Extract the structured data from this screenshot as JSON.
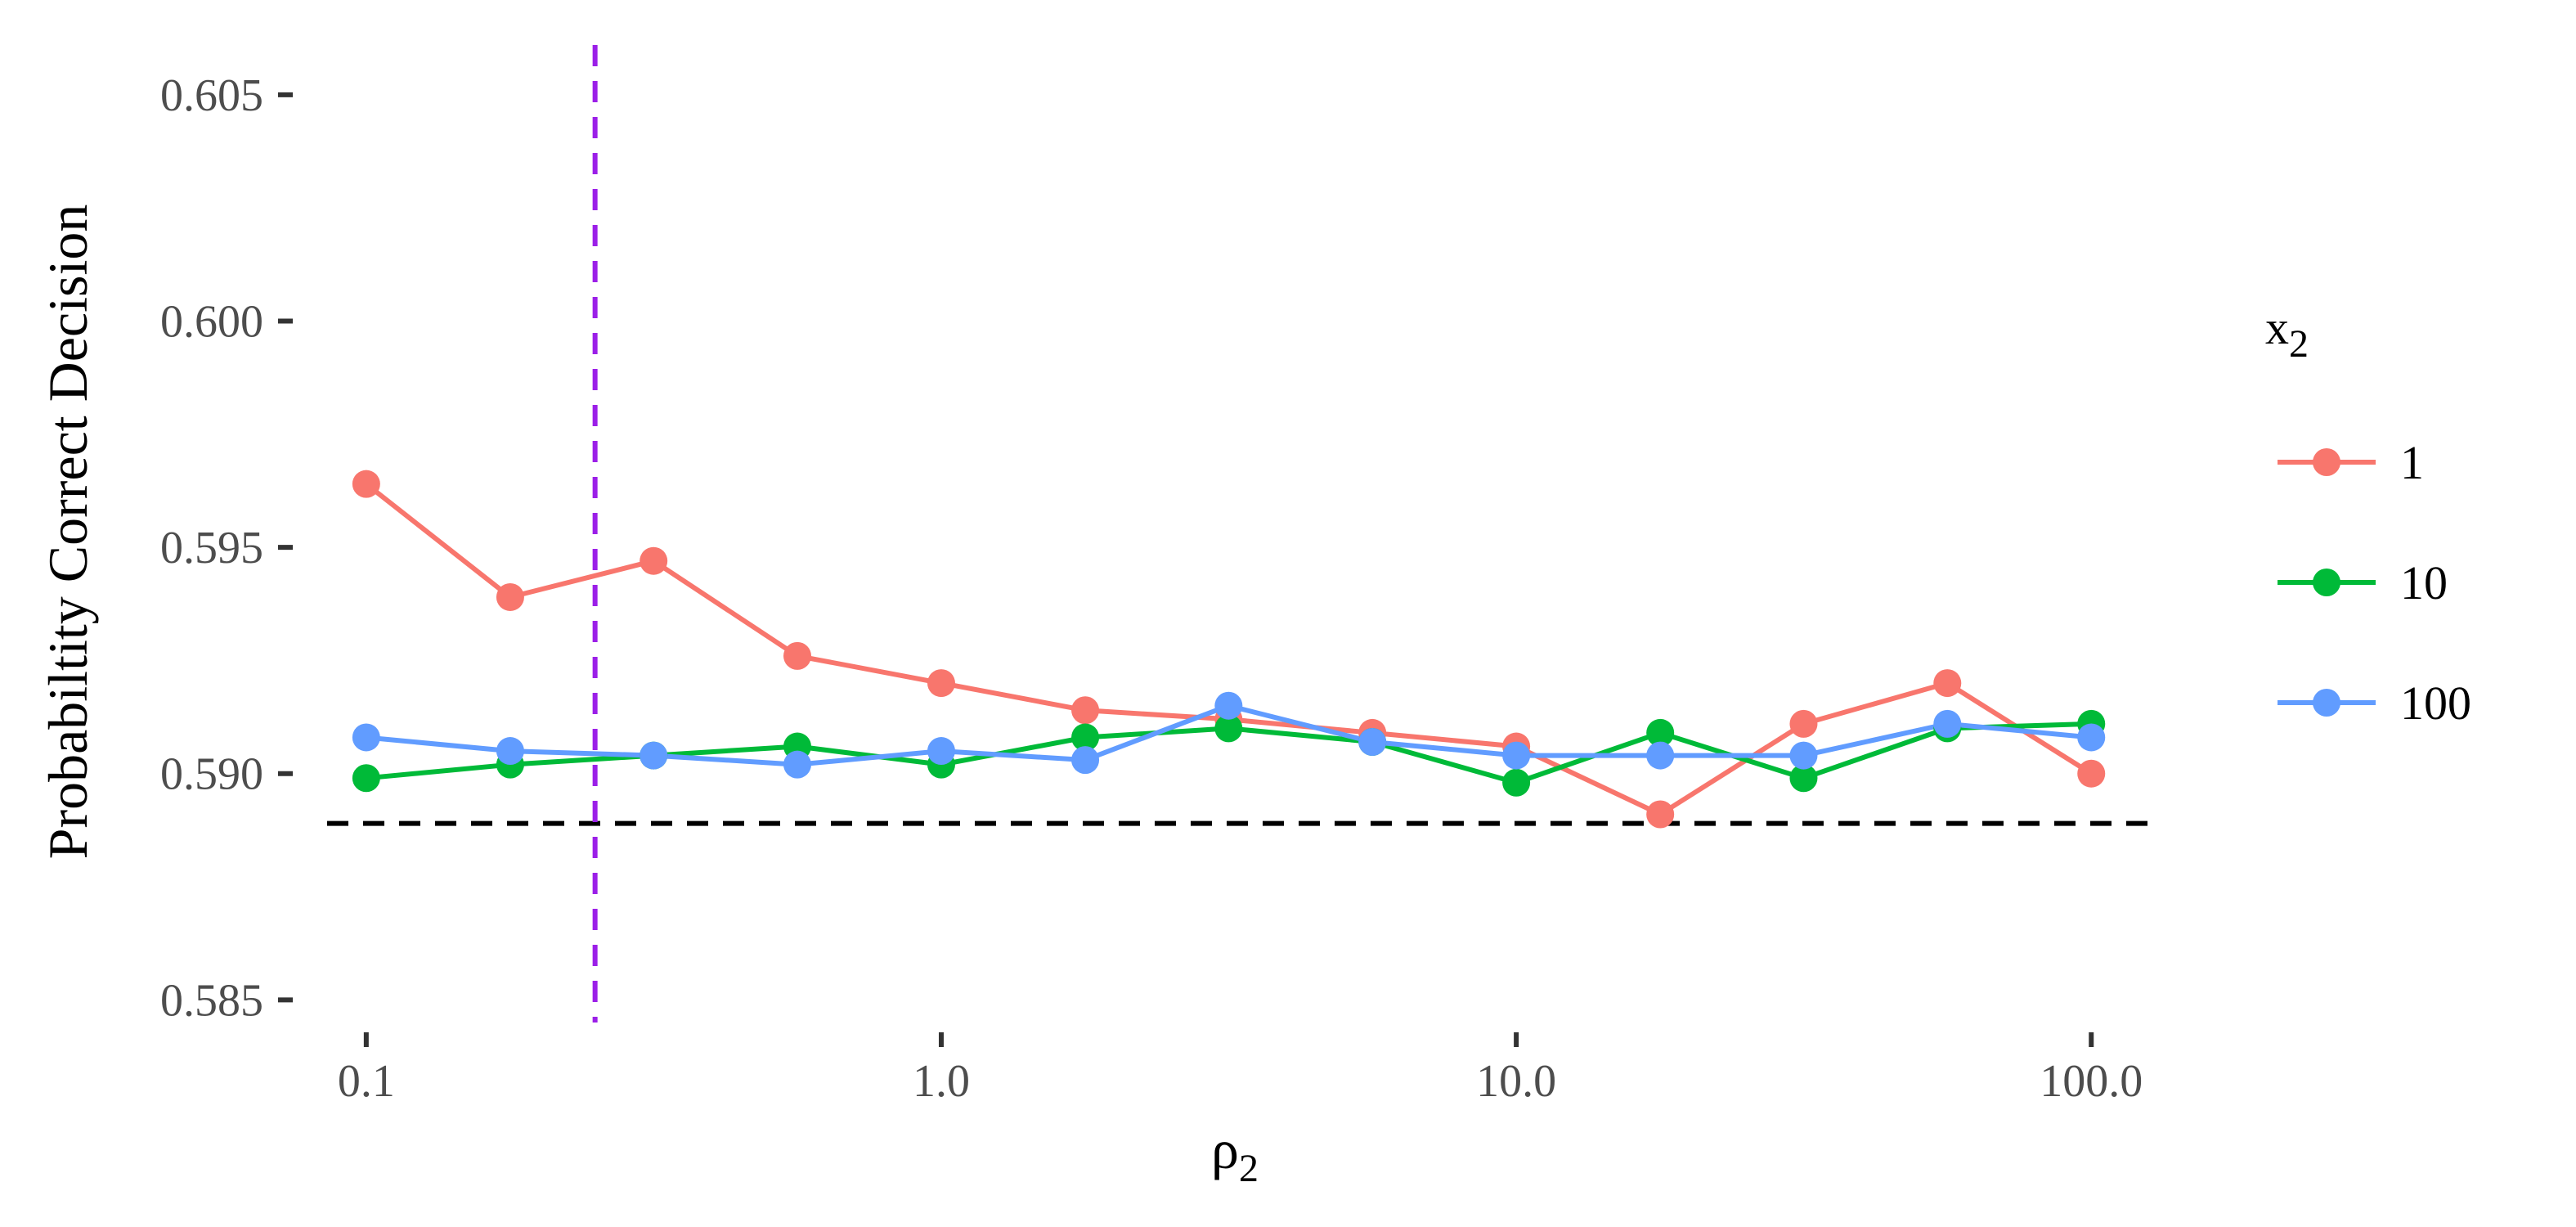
{
  "chart_data": {
    "type": "line",
    "title": "",
    "xlabel": "ρ",
    "xlabel_sub": "2",
    "ylabel": "Probabiltity Correct Decision",
    "x_scale": "log10",
    "xlim": [
      0.075,
      140
    ],
    "ylim": [
      0.5845,
      0.6061
    ],
    "x_ticks": [
      0.1,
      1.0,
      10.0,
      100.0
    ],
    "x_tick_labels": [
      "0.1",
      "1.0",
      "10.0",
      "100.0"
    ],
    "y_ticks": [
      0.585,
      0.59,
      0.595,
      0.6,
      0.605
    ],
    "y_tick_labels": [
      "0.585",
      "0.590",
      "0.595",
      "0.600",
      "0.605"
    ],
    "grid": false,
    "legend": {
      "title": "x",
      "title_sub": "2",
      "placement": "right"
    },
    "reference_lines": [
      {
        "orientation": "horizontal",
        "value": 0.5889,
        "color": "#000000",
        "style": "dashed"
      },
      {
        "orientation": "vertical",
        "value": 0.25,
        "color": "#9b1fe8",
        "style": "dashed"
      }
    ],
    "x": [
      0.1,
      0.178,
      0.316,
      0.562,
      1.0,
      1.78,
      3.16,
      5.62,
      10.0,
      17.8,
      31.6,
      56.2,
      100.0
    ],
    "series": [
      {
        "name": "1",
        "color": "#f8766d",
        "values": [
          0.5964,
          0.5939,
          0.5947,
          0.5926,
          0.592,
          0.5914,
          0.5912,
          0.5909,
          0.5906,
          0.5891,
          0.5911,
          0.592,
          0.59
        ]
      },
      {
        "name": "10",
        "color": "#00ba38",
        "values": [
          0.5899,
          0.5902,
          0.5904,
          0.5906,
          0.5902,
          0.5908,
          0.591,
          0.5907,
          0.5898,
          0.5909,
          0.5899,
          0.591,
          0.5911
        ]
      },
      {
        "name": "100",
        "color": "#619cff",
        "values": [
          0.5908,
          0.5905,
          0.5904,
          0.5902,
          0.5905,
          0.5903,
          0.5915,
          0.5907,
          0.5904,
          0.5904,
          0.5904,
          0.5911,
          0.5908
        ]
      }
    ]
  }
}
